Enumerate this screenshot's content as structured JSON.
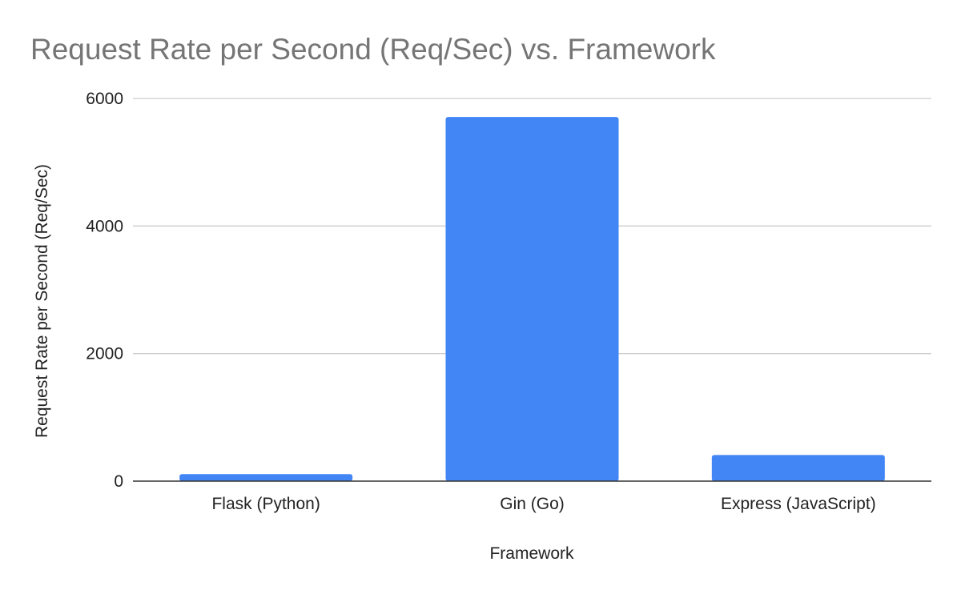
{
  "chart_data": {
    "type": "bar",
    "title": "Request Rate per Second (Req/Sec) vs. Framework",
    "xlabel": "Framework",
    "ylabel": "Request Rate per Second (Req/Sec)",
    "categories": [
      "Flask (Python)",
      "Gin (Go)",
      "Express (JavaScript)"
    ],
    "values": [
      110,
      5710,
      410
    ],
    "ylim": [
      0,
      6000
    ],
    "yticks": [
      0,
      2000,
      4000,
      6000
    ],
    "grid": true,
    "legend": "none",
    "bar_color": "#4285f4"
  }
}
